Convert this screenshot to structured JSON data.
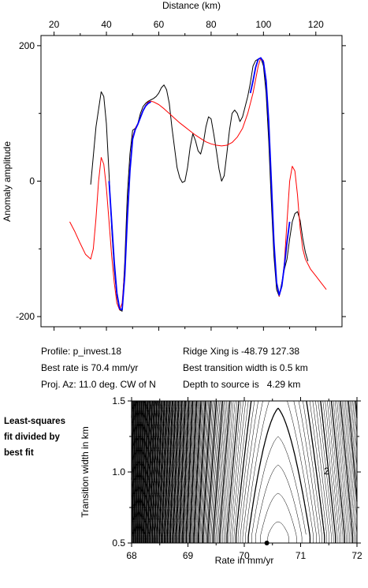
{
  "profile_text": "Profile: p_invest.18",
  "best_rate_text": "Best rate is 70.4 mm/yr",
  "proj_az_text": "Proj. Az: 11.0 deg. CW of N",
  "ridge_xing_text": "Ridge Xing is -48.79 127.38",
  "best_width_text": "Best transition width is 0.5 km",
  "depth_text": "Depth to source is   4.29 km",
  "side_label_line1": "Least-squares",
  "side_label_line2": "fit divided by",
  "side_label_line3": "best fit",
  "colors": {
    "observed": "#000000",
    "model": "#ff0000",
    "fit_window": "#0000ff",
    "contour": "#000000"
  },
  "chart_data": [
    {
      "type": "line",
      "xlabel": "Distance (km)",
      "ylabel": "Anomaly amplitude",
      "xlim": [
        15,
        130
      ],
      "ylim": [
        -215,
        215
      ],
      "xticks": [
        20,
        40,
        60,
        80,
        100,
        120
      ],
      "yticks": [
        -200,
        0,
        200
      ],
      "x_axis_position": "top",
      "grid": false,
      "legend": "none",
      "series": [
        {
          "color": "#000000",
          "x": [
            34,
            36,
            38,
            39,
            40,
            41,
            42,
            43,
            44,
            45,
            46,
            47,
            48,
            49,
            50,
            51,
            52,
            53,
            54,
            55,
            56,
            57,
            58,
            59,
            60,
            61,
            62,
            63,
            64,
            65,
            66,
            67,
            68,
            69,
            70,
            71,
            72,
            73,
            74,
            75,
            76,
            77,
            78,
            79,
            80,
            81,
            82,
            83,
            84,
            85,
            86,
            87,
            88,
            89,
            90,
            91,
            92,
            93,
            94,
            95,
            96,
            97,
            98,
            99,
            100,
            101,
            102,
            103,
            104,
            105,
            106,
            107,
            108,
            109,
            110,
            111,
            112,
            113,
            114,
            115,
            116,
            117
          ],
          "y": [
            -5,
            80,
            132,
            125,
            85,
            10,
            -70,
            -130,
            -170,
            -190,
            -192,
            -120,
            -20,
            40,
            75,
            78,
            85,
            100,
            110,
            115,
            118,
            120,
            122,
            125,
            130,
            138,
            142,
            135,
            115,
            80,
            50,
            20,
            5,
            -2,
            0,
            20,
            50,
            70,
            60,
            45,
            40,
            55,
            80,
            95,
            92,
            70,
            45,
            18,
            0,
            8,
            40,
            75,
            100,
            105,
            100,
            88,
            95,
            110,
            125,
            145,
            170,
            178,
            180,
            182,
            170,
            130,
            60,
            -30,
            -110,
            -160,
            -170,
            -150,
            -130,
            -115,
            -85,
            -60,
            -48,
            -45,
            -58,
            -85,
            -105,
            -118
          ]
        },
        {
          "color": "#ff0000",
          "x": [
            26,
            28,
            30,
            32,
            34,
            35,
            36,
            37,
            38,
            39,
            40,
            41,
            42,
            43,
            44,
            45,
            46,
            47,
            48,
            49,
            50,
            51,
            52,
            53,
            54,
            55,
            56,
            57,
            58,
            60,
            62,
            64,
            66,
            68,
            70,
            72,
            74,
            76,
            78,
            80,
            82,
            84,
            86,
            88,
            90,
            92,
            94,
            96,
            97,
            98,
            99,
            100,
            101,
            102,
            103,
            104,
            105,
            106,
            107,
            108,
            109,
            110,
            111,
            112,
            113,
            114,
            115,
            116,
            118,
            120,
            122,
            124
          ],
          "y": [
            -60,
            -75,
            -92,
            -108,
            -115,
            -100,
            -55,
            0,
            35,
            25,
            -10,
            -60,
            -110,
            -150,
            -180,
            -190,
            -180,
            -130,
            -50,
            20,
            65,
            78,
            85,
            95,
            105,
            112,
            117,
            118,
            117,
            113,
            107,
            100,
            93,
            86,
            80,
            74,
            68,
            63,
            58,
            55,
            53,
            52,
            53,
            57,
            65,
            78,
            100,
            130,
            150,
            170,
            182,
            178,
            150,
            90,
            0,
            -90,
            -150,
            -170,
            -155,
            -120,
            -60,
            0,
            22,
            15,
            -20,
            -70,
            -100,
            -115,
            -130,
            -140,
            -150,
            -160
          ]
        },
        {
          "color": "#0000ff",
          "x": [
            41,
            42,
            43,
            44,
            45,
            46,
            47,
            48,
            49,
            50,
            51,
            52,
            53,
            54,
            55,
            56,
            57,
            95,
            96,
            97,
            98,
            99,
            100,
            101,
            102,
            103,
            104,
            105,
            106,
            107,
            108,
            109,
            110
          ],
          "y": [
            0,
            -60,
            -120,
            -165,
            -188,
            -190,
            -140,
            -55,
            15,
            62,
            76,
            84,
            94,
            104,
            111,
            115,
            117,
            130,
            148,
            168,
            180,
            182,
            176,
            148,
            88,
            0,
            -90,
            -150,
            -168,
            -155,
            -125,
            -90,
            -60
          ]
        }
      ]
    },
    {
      "type": "contour",
      "xlabel": "Rate in mm/yr",
      "ylabel": "Transition width in km",
      "xlim": [
        68,
        72
      ],
      "ylim": [
        0.5,
        1.5
      ],
      "xticks": [
        68,
        69,
        70,
        71,
        72
      ],
      "yticks": [
        0.5,
        1.0,
        1.5
      ],
      "grid": false,
      "legend": "none",
      "contour_labels": [
        "2"
      ],
      "best_fit_point": {
        "x": 70.4,
        "y": 0.5
      }
    }
  ]
}
